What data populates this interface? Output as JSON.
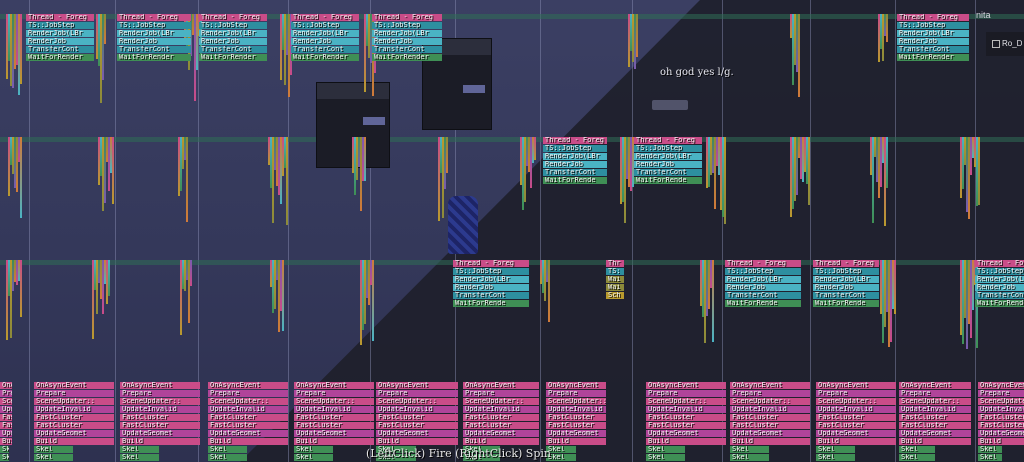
{
  "hud": {
    "controls_hint": "(LeftClick) Fire (RightClick) Spin",
    "chat_message": "oh god yes l/g.",
    "player_name": "nita",
    "side_button": "Ro_D"
  },
  "profiler": {
    "thread_block_labels": [
      "Thread - Foreg",
      "TS::JobStep",
      "RenderJob(LBr",
      "RenderJob",
      "TransferCont",
      "WaitForRender"
    ],
    "thread_block_labels_mid": [
      "Thread - Foreg",
      "TS::JobStep",
      "RenderJob(LBr",
      "RenderJob",
      "TransferCont",
      "WaitForRende"
    ],
    "short_block_labels": [
      "Thr",
      "TS:",
      "Wai",
      "Wai",
      "Sch"
    ],
    "event_block_labels": [
      "OnAsyncEvent",
      "Prepare",
      "SceneUpdater::",
      "UpdateInvalid",
      "FastCluster",
      "FastCluster",
      "UpdateGeomet",
      "Build",
      "Skel",
      "Skel"
    ]
  },
  "colors": {
    "thread_header": "#c94c88",
    "job": "#2d8fa0",
    "render": "#4ab3c4",
    "event": "#3f8f55",
    "shadow": "#1e1f2b",
    "sky": "#3b3f63"
  }
}
